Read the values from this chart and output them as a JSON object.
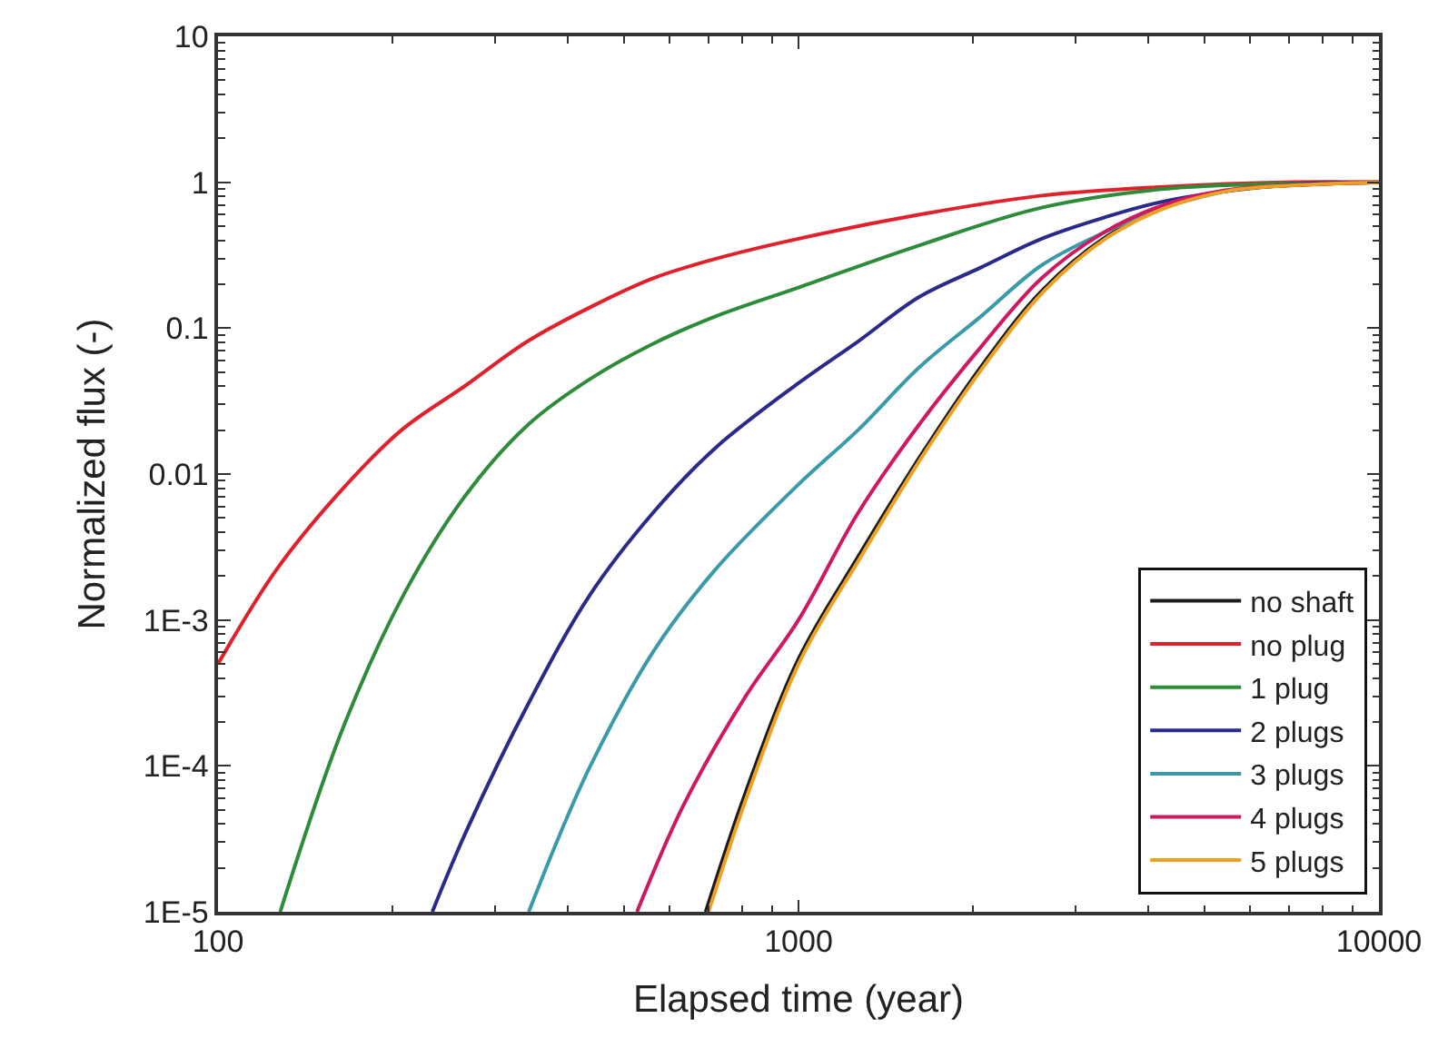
{
  "chart_data": {
    "type": "line",
    "xlabel": "Elapsed time (year)",
    "ylabel": "Normalized flux (-)",
    "log": "xy",
    "legend": "bottom right",
    "line_style": "solid",
    "xlim": [
      100,
      10000
    ],
    "xticks": [
      100,
      1000,
      10000
    ],
    "ylim": [
      1e-05,
      10
    ],
    "yticks": [
      {
        "value": 1e-05,
        "label": "1E-5"
      },
      {
        "value": 0.0001,
        "label": "1E-4"
      },
      {
        "value": 0.001,
        "label": "1E-3"
      },
      0.01,
      0.1,
      1,
      10
    ],
    "series": [
      {
        "name": "no shaft",
        "color": "#1a1a1a",
        "x": [
          692,
          811,
          1000,
          1266,
          1616,
          2060,
          2624,
          3350,
          4266,
          5440,
          6950,
          10000
        ],
        "values": [
          1e-05,
          6.6e-05,
          0.00054,
          0.0027,
          0.013,
          0.054,
          0.18,
          0.41,
          0.67,
          0.87,
          0.95,
          1
        ]
      },
      {
        "name": "no plug",
        "color": "#e0202a",
        "x": [
          100,
          126,
          161,
          207,
          266,
          341,
          439,
          562,
          723,
          1000,
          1616,
          2624,
          4266,
          6950,
          10000
        ],
        "values": [
          0.0005,
          0.0022,
          0.0073,
          0.02,
          0.04,
          0.081,
          0.14,
          0.22,
          0.3,
          0.41,
          0.6,
          0.81,
          0.93,
          1,
          1
        ]
      },
      {
        "name": "1 plug",
        "color": "#2e8b3a",
        "x": [
          128,
          164,
          209,
          268,
          343,
          438,
          561,
          718,
          1000,
          1616,
          2624,
          4266,
          6950,
          10000
        ],
        "values": [
          1e-05,
          0.00018,
          0.0015,
          0.0073,
          0.022,
          0.045,
          0.078,
          0.12,
          0.19,
          0.37,
          0.67,
          0.9,
          0.98,
          1
        ]
      },
      {
        "name": "2 plugs",
        "color": "#2a2a8a",
        "x": [
          234,
          268,
          343,
          438,
          561,
          718,
          1000,
          1266,
          1616,
          2060,
          2624,
          3350,
          4266,
          6950,
          10000
        ],
        "values": [
          1e-05,
          3.6e-05,
          0.00027,
          0.0015,
          0.0054,
          0.015,
          0.042,
          0.081,
          0.164,
          0.26,
          0.41,
          0.57,
          0.74,
          0.96,
          1
        ]
      },
      {
        "name": "3 plugs",
        "color": "#3a9aaa",
        "x": [
          343,
          387,
          438,
          561,
          718,
          1000,
          1266,
          1616,
          2060,
          2624,
          3350,
          4266,
          5440
        ],
        "values": [
          1e-05,
          3.3e-05,
          0.0001,
          0.0006,
          0.0022,
          0.0085,
          0.02,
          0.054,
          0.12,
          0.27,
          0.45,
          0.67,
          0.87
        ]
      },
      {
        "name": "4 plugs",
        "color": "#d01860",
        "x": [
          527,
          634,
          811,
          1000,
          1266,
          1616,
          2060,
          2624,
          3350,
          4266,
          5440,
          6950,
          10000
        ],
        "values": [
          1e-05,
          5.4e-05,
          0.0003,
          0.001,
          0.0054,
          0.022,
          0.074,
          0.22,
          0.45,
          0.7,
          0.88,
          0.95,
          1
        ]
      },
      {
        "name": "5 plugs",
        "color": "#f0a020",
        "x": [
          700,
          820,
          1010,
          1280,
          1630,
          2080,
          2650,
          3380,
          4300,
          5480,
          7000,
          10000
        ],
        "values": [
          1e-05,
          6.6e-05,
          0.00054,
          0.0027,
          0.013,
          0.054,
          0.18,
          0.41,
          0.67,
          0.87,
          0.95,
          1
        ]
      }
    ]
  }
}
